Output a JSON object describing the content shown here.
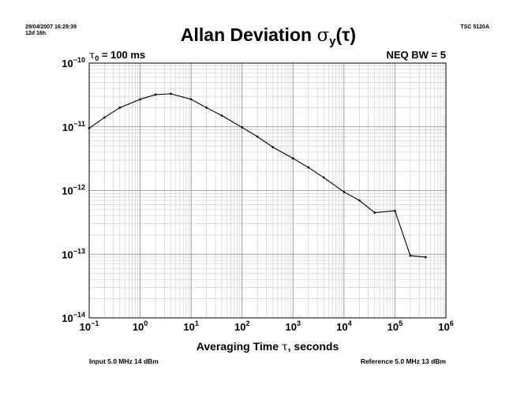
{
  "header": {
    "timestamp": "29/04/2007 16:29:39",
    "duration": "12d 16h",
    "instrument": "TSC 5120A"
  },
  "chart_data": {
    "type": "line",
    "title": {
      "main": "Allan Deviation ",
      "sigma": "σ",
      "sub": "y",
      "arg": "(τ)"
    },
    "annotations": {
      "tau0": {
        "symbol": "τ",
        "sub": "0",
        "text": " = 100 ms"
      },
      "neq_bw": "NEQ BW = 5"
    },
    "xlabel": {
      "prefix": "Averaging Time ",
      "symbol": "τ",
      "suffix": ", seconds"
    },
    "xscale": "log",
    "yscale": "log",
    "xlim": [
      0.1,
      1000000
    ],
    "ylim": [
      1e-14,
      1e-10
    ],
    "grid": true,
    "x_ticks": [
      {
        "base": "10",
        "exp": "−1"
      },
      {
        "base": "10",
        "exp": "0"
      },
      {
        "base": "10",
        "exp": "1"
      },
      {
        "base": "10",
        "exp": "2"
      },
      {
        "base": "10",
        "exp": "3"
      },
      {
        "base": "10",
        "exp": "4"
      },
      {
        "base": "10",
        "exp": "5"
      },
      {
        "base": "10",
        "exp": "6"
      }
    ],
    "y_ticks": [
      {
        "base": "10",
        "exp": "−10"
      },
      {
        "base": "10",
        "exp": "−11"
      },
      {
        "base": "10",
        "exp": "−12"
      },
      {
        "base": "10",
        "exp": "−13"
      },
      {
        "base": "10",
        "exp": "−14"
      }
    ],
    "series": [
      {
        "color": "#000000",
        "x": [
          0.1,
          0.2,
          0.4,
          1,
          2,
          4,
          10,
          20,
          40,
          100,
          200,
          400,
          1000,
          2000,
          4000,
          10000,
          20000,
          40000,
          100000,
          200000,
          400000
        ],
        "y": [
          9.5e-12,
          1.4e-11,
          2e-11,
          2.7e-11,
          3.2e-11,
          3.3e-11,
          2.7e-11,
          2e-11,
          1.5e-11,
          9.8e-12,
          7e-12,
          4.8e-12,
          3.2e-12,
          2.3e-12,
          1.6e-12,
          9.5e-13,
          7e-13,
          4.5e-13,
          4.8e-13,
          9.5e-14,
          9e-14
        ]
      }
    ]
  },
  "footer": {
    "input": "Input 5.0 MHz 14 dBm",
    "reference": "Reference 5.0 MHz 13 dBm"
  }
}
